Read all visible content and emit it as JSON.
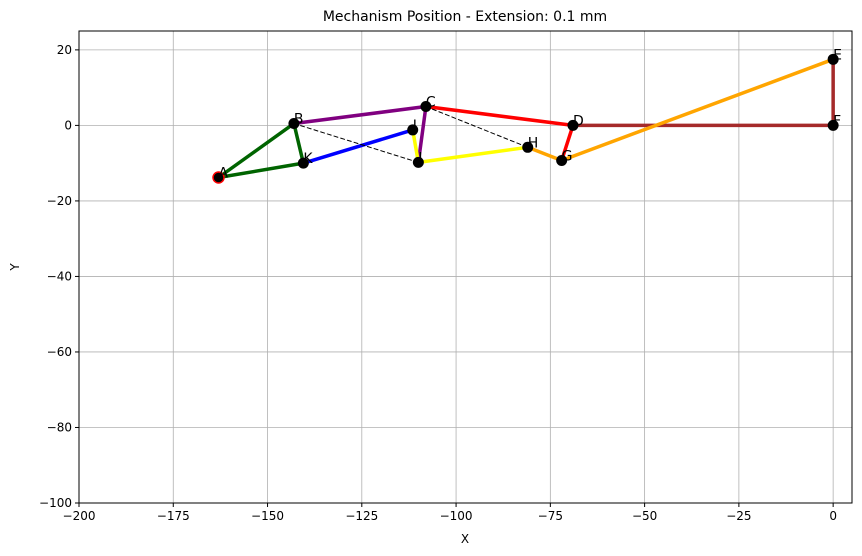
{
  "chart_data": {
    "type": "line",
    "title": "Mechanism Position - Extension: 0.1 mm",
    "xlabel": "X",
    "ylabel": "Y",
    "xlim": [
      -200,
      5
    ],
    "ylim": [
      -100,
      25
    ],
    "xticks": [
      -200,
      -175,
      -150,
      -125,
      -100,
      -75,
      -50,
      -25,
      0
    ],
    "yticks": [
      -100,
      -80,
      -60,
      -40,
      -20,
      0,
      20
    ],
    "grid": true,
    "points": [
      {
        "name": "A",
        "x": -163,
        "y": -13.8
      },
      {
        "name": "B",
        "x": -143,
        "y": 0.5
      },
      {
        "name": "C",
        "x": -108,
        "y": 5
      },
      {
        "name": "D",
        "x": -69,
        "y": 0
      },
      {
        "name": "E",
        "x": 0,
        "y": 17.5
      },
      {
        "name": "F",
        "x": 0,
        "y": 0
      },
      {
        "name": "G",
        "x": -72,
        "y": -9.3
      },
      {
        "name": "H",
        "x": -81,
        "y": -5.8
      },
      {
        "name": "I",
        "x": -110,
        "y": -9.8
      },
      {
        "name": "J",
        "x": -111.5,
        "y": -1.2
      },
      {
        "name": "K",
        "x": -140.5,
        "y": -10
      }
    ],
    "links": [
      {
        "from": "A",
        "to": "B",
        "color": "#006400",
        "style": "solid"
      },
      {
        "from": "B",
        "to": "K",
        "color": "#006400",
        "style": "solid"
      },
      {
        "from": "A",
        "to": "K",
        "color": "#006400",
        "style": "solid"
      },
      {
        "from": "B",
        "to": "C",
        "color": "#800080",
        "style": "solid"
      },
      {
        "from": "C",
        "to": "I",
        "color": "#800080",
        "style": "solid"
      },
      {
        "from": "C",
        "to": "D",
        "color": "#ff0000",
        "style": "solid"
      },
      {
        "from": "D",
        "to": "G",
        "color": "#ff0000",
        "style": "solid"
      },
      {
        "from": "D",
        "to": "F",
        "color": "#a52a2a",
        "style": "solid"
      },
      {
        "from": "E",
        "to": "F",
        "color": "#a52a2a",
        "style": "solid"
      },
      {
        "from": "E",
        "to": "G",
        "color": "#ffa500",
        "style": "solid"
      },
      {
        "from": "G",
        "to": "H",
        "color": "#ffa500",
        "style": "solid"
      },
      {
        "from": "H",
        "to": "I",
        "color": "#ffff00",
        "style": "solid"
      },
      {
        "from": "I",
        "to": "J",
        "color": "#ffff00",
        "style": "solid"
      },
      {
        "from": "J",
        "to": "K",
        "color": "#0000ff",
        "style": "solid"
      },
      {
        "from": "B",
        "to": "I",
        "color": "#000000",
        "style": "dashed"
      },
      {
        "from": "C",
        "to": "H",
        "color": "#000000",
        "style": "dashed"
      }
    ],
    "fixed_point": "A",
    "fixed_point_color": "#ff0000",
    "grid_color": "#b0b0b0",
    "point_color": "#000000"
  }
}
